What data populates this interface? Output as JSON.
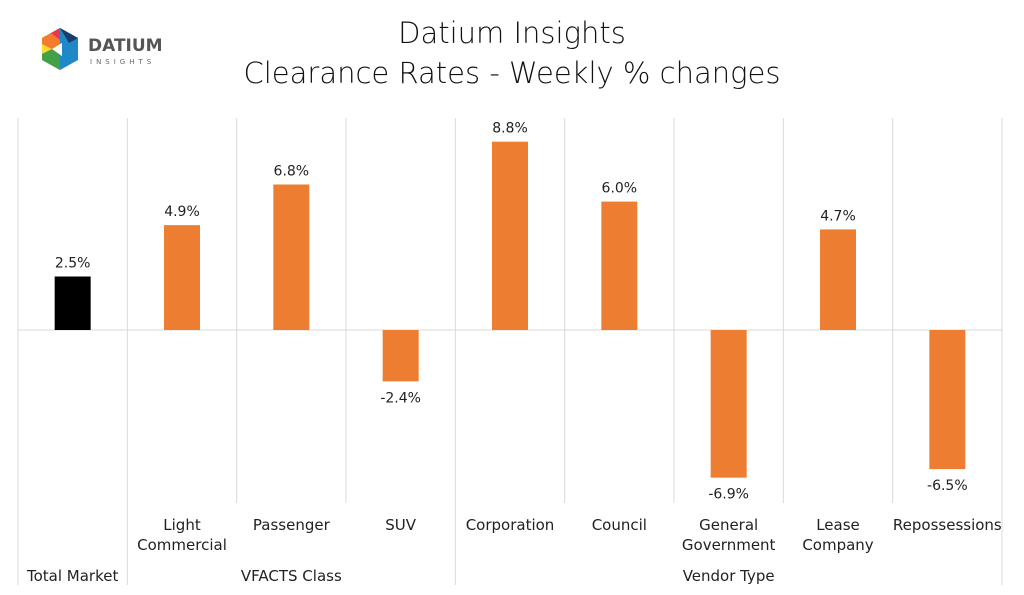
{
  "logo": {
    "name": "DATIUM",
    "sub": "INSIGHTS"
  },
  "chart_data": {
    "type": "bar",
    "title": "Datium Insights",
    "subtitle": "Clearance Rates - Weekly % changes",
    "categories": [
      "Total Market",
      "Light Commercial",
      "Passenger",
      "SUV",
      "Corporation",
      "Council",
      "General Government",
      "Lease Company",
      "Repossessions"
    ],
    "category_lines": [
      [
        "Total Market"
      ],
      [
        "Light",
        "Commercial"
      ],
      [
        "Passenger"
      ],
      [
        "SUV"
      ],
      [
        "Corporation"
      ],
      [
        "Council"
      ],
      [
        "General",
        "Government"
      ],
      [
        "Lease",
        "Company"
      ],
      [
        "Repossessions"
      ]
    ],
    "groups": [
      {
        "label": "",
        "span": 1
      },
      {
        "label": "VFACTS Class",
        "span": 3
      },
      {
        "label": "Vendor Type",
        "span": 5
      }
    ],
    "values": [
      2.5,
      4.9,
      6.8,
      -2.4,
      8.8,
      6.0,
      -6.9,
      4.7,
      -6.5
    ],
    "data_labels": [
      "2.5%",
      "4.9%",
      "6.8%",
      "-2.4%",
      "8.8%",
      "6.0%",
      "-6.9%",
      "4.7%",
      "-6.5%"
    ],
    "colors": [
      "#000000",
      "#ED7D31",
      "#ED7D31",
      "#ED7D31",
      "#ED7D31",
      "#ED7D31",
      "#ED7D31",
      "#ED7D31",
      "#ED7D31"
    ],
    "xlabel": "",
    "ylabel": "",
    "ylim": [
      -9,
      9
    ],
    "grid": false,
    "legend": "none"
  }
}
